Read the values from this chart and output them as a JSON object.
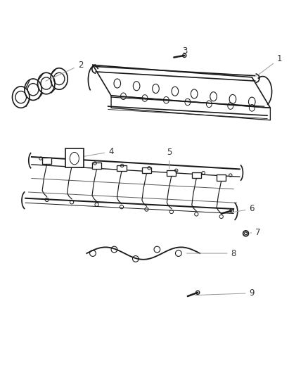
{
  "background_color": "#ffffff",
  "line_color": "#1a1a1a",
  "label_color": "#333333",
  "leader_line_color": "#888888",
  "figsize": [
    4.38,
    5.33
  ],
  "dpi": 100
}
